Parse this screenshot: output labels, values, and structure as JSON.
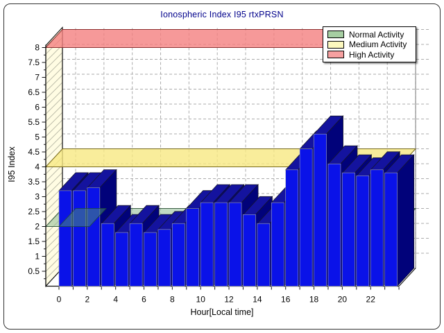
{
  "chart_data": {
    "type": "bar",
    "title": "Ionospheric Index I95 rtxPRSN",
    "xlabel": "Hour[Local time]",
    "ylabel": "I95 Index",
    "x": [
      0,
      1,
      2,
      3,
      4,
      5,
      6,
      7,
      8,
      9,
      10,
      11,
      12,
      13,
      14,
      15,
      16,
      17,
      18,
      19,
      20,
      21,
      22,
      23
    ],
    "values": [
      3.2,
      3.2,
      3.3,
      2.1,
      1.8,
      2.1,
      1.8,
      1.9,
      2.1,
      2.6,
      2.8,
      2.8,
      2.8,
      2.4,
      2.1,
      2.8,
      3.9,
      4.6,
      5.1,
      4.1,
      3.8,
      3.7,
      3.9,
      3.8
    ],
    "ylim": [
      0,
      8.25
    ],
    "y_tick_step": 0.5,
    "y_minor_tick_step": 0.25,
    "y_tick_labels": [
      "0.5",
      "1",
      "1.5",
      "2",
      "2.5",
      "3",
      "3.5",
      "4",
      "4.5",
      "5",
      "5.5",
      "6",
      "6.5",
      "7",
      "7.5",
      "8"
    ],
    "x_tick_labels": [
      "0",
      "2",
      "4",
      "6",
      "8",
      "10",
      "12",
      "14",
      "16",
      "18",
      "20",
      "22"
    ],
    "x_tick_hours": [
      0,
      2,
      4,
      6,
      8,
      10,
      12,
      14,
      16,
      18,
      20,
      22
    ],
    "grid": true,
    "legend_position": "top-right",
    "planes": [
      {
        "name": "Normal Activity",
        "value": 2
      },
      {
        "name": "Medium Activity",
        "value": 4
      },
      {
        "name": "High Activity",
        "value": 8
      }
    ]
  },
  "legend": {
    "items": [
      {
        "label": "Normal Activity",
        "color": "#A6CEA2"
      },
      {
        "label": "Medium Activity",
        "color": "#FCF8BE"
      },
      {
        "label": "High Activity",
        "color": "#F6A0A0"
      }
    ]
  },
  "colors": {
    "title": "#00008B",
    "bar_front": "#0A12E8",
    "bar_side": "#01027A",
    "bar_top": "#14139E",
    "bar_edge": "#15152C",
    "bar_front_edge": "#9FA6C0",
    "wall_fill": "#FFFCE3",
    "wall_hatch": "#B5B5A4",
    "grid": "#ABABAB",
    "axis": "#111111",
    "plane_normal_fill": "rgba(140,185,145,0.55)",
    "plane_normal_stroke": "#3E5F46",
    "plane_medium_fill": "rgba(247,232,130,0.8)",
    "plane_medium_stroke": "#77691B",
    "plane_high_fill": "rgba(244,128,128,0.8)",
    "plane_high_stroke": "#8B3030",
    "overlay_fill": "rgba(80,150,110,0.5)",
    "overlay_stroke": "rgba(30,75,55,0.75)"
  }
}
